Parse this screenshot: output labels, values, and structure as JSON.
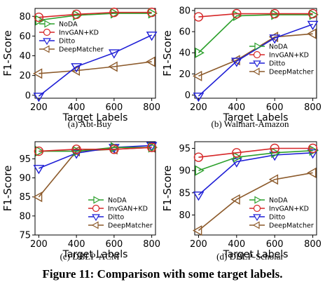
{
  "figure_caption": "Figure 11: Comparison with some target labels.",
  "colors": {
    "NoDA": "#2ca02c",
    "InvGAN+KD": "#d62728",
    "Ditto": "#1f1fd6",
    "DeepMatcher": "#8c5a2b"
  },
  "chart_data": [
    {
      "type": "line",
      "subcaption": "(a)  Abt-Buy",
      "xlabel": "Target Labels",
      "ylabel": "F1-Score",
      "x": [
        200,
        400,
        600,
        800
      ],
      "xlim": [
        180,
        820
      ],
      "ylim": [
        -3,
        88
      ],
      "yticks": [
        0,
        20,
        40,
        60,
        80
      ],
      "legend": "top-left",
      "series": [
        {
          "name": "NoDA",
          "marker": "tri-right",
          "values": [
            76,
            81,
            83,
            83
          ]
        },
        {
          "name": "InvGAN+KD",
          "marker": "circle",
          "values": [
            79,
            82,
            84,
            84
          ]
        },
        {
          "name": "Ditto",
          "marker": "tri-down",
          "values": [
            -1,
            29,
            43,
            61
          ]
        },
        {
          "name": "DeepMatcher",
          "marker": "tri-left",
          "values": [
            22,
            25,
            29,
            34
          ]
        }
      ]
    },
    {
      "type": "line",
      "subcaption": "(b)  Walmart-Amazon",
      "xlabel": "Target Labels",
      "ylabel": "F1-Score",
      "x": [
        200,
        400,
        600,
        800
      ],
      "xlim": [
        180,
        820
      ],
      "ylim": [
        -3,
        82
      ],
      "yticks": [
        0,
        20,
        40,
        60,
        80
      ],
      "legend": "right",
      "series": [
        {
          "name": "NoDA",
          "marker": "tri-right",
          "values": [
            40,
            75,
            76,
            76
          ]
        },
        {
          "name": "InvGAN+KD",
          "marker": "circle",
          "values": [
            74,
            77,
            77,
            77
          ]
        },
        {
          "name": "Ditto",
          "marker": "tri-down",
          "values": [
            -1,
            32,
            54,
            67
          ]
        },
        {
          "name": "DeepMatcher",
          "marker": "tri-left",
          "values": [
            18,
            33,
            55,
            58
          ]
        }
      ]
    },
    {
      "type": "line",
      "subcaption": "(c)  DBLP-ACM",
      "xlabel": "Target Labels",
      "ylabel": "F1-Score",
      "x": [
        200,
        400,
        600,
        800
      ],
      "xlim": [
        180,
        820
      ],
      "ylim": [
        75,
        99.5
      ],
      "yticks": [
        75,
        80,
        85,
        90,
        95
      ],
      "legend": "lower-right",
      "series": [
        {
          "name": "NoDA",
          "marker": "tri-right",
          "values": [
            97,
            97,
            98,
            98
          ]
        },
        {
          "name": "InvGAN+KD",
          "marker": "circle",
          "values": [
            97,
            97.5,
            97.5,
            98
          ]
        },
        {
          "name": "Ditto",
          "marker": "tri-down",
          "values": [
            92.5,
            96.5,
            98,
            98.5
          ]
        },
        {
          "name": "DeepMatcher",
          "marker": "tri-left",
          "values": [
            85,
            97,
            97.5,
            98
          ]
        }
      ]
    },
    {
      "type": "line",
      "subcaption": "(d)  DBLP-Scholar",
      "xlabel": "Target Labels",
      "ylabel": "F1-Score",
      "x": [
        200,
        400,
        600,
        800
      ],
      "xlim": [
        180,
        820
      ],
      "ylim": [
        75.5,
        96.5
      ],
      "yticks": [
        80,
        85,
        90,
        95
      ],
      "legend": "lower-right",
      "series": [
        {
          "name": "NoDA",
          "marker": "tri-right",
          "values": [
            90,
            93,
            94,
            94.5
          ]
        },
        {
          "name": "InvGAN+KD",
          "marker": "circle",
          "values": [
            93,
            94,
            95,
            95
          ]
        },
        {
          "name": "Ditto",
          "marker": "tri-down",
          "values": [
            84.5,
            92,
            93.5,
            94
          ]
        },
        {
          "name": "DeepMatcher",
          "marker": "tri-left",
          "values": [
            76.5,
            83.5,
            88,
            89.5
          ]
        }
      ]
    }
  ]
}
